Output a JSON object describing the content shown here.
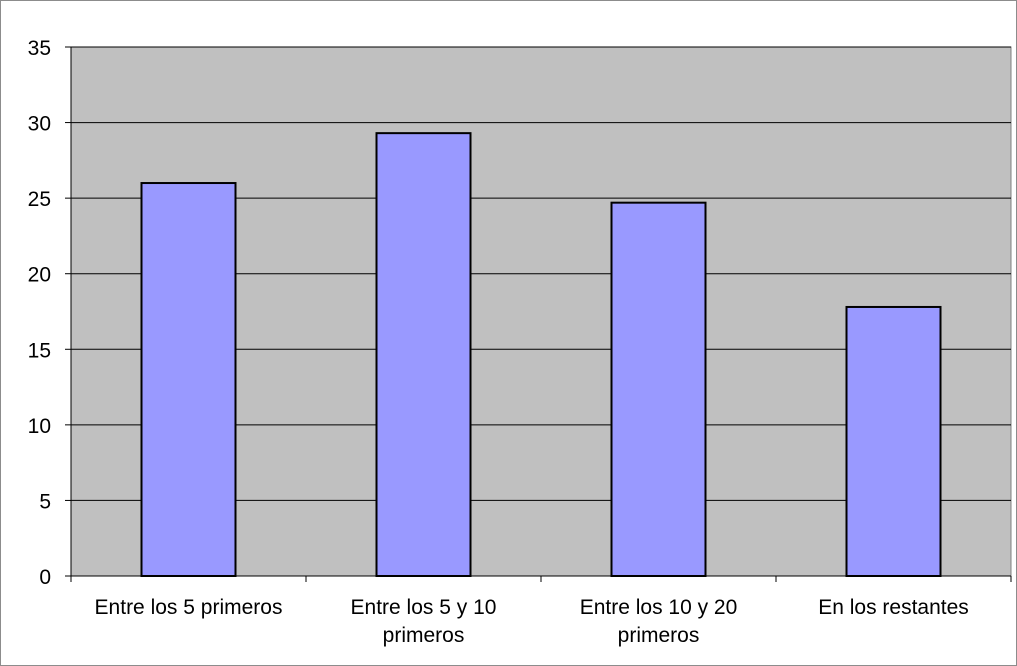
{
  "chart_data": {
    "type": "bar",
    "title": "",
    "xlabel": "",
    "ylabel": "",
    "categories": [
      [
        "Entre los 5 primeros"
      ],
      [
        "Entre los 5 y 10",
        "primeros"
      ],
      [
        "Entre los 10 y 20",
        "primeros"
      ],
      [
        "En los restantes"
      ]
    ],
    "values": [
      26,
      29.3,
      24.7,
      17.8
    ],
    "ylim": [
      0,
      35
    ],
    "yticks": [
      0,
      5,
      10,
      15,
      20,
      25,
      30,
      35
    ],
    "grid": true,
    "legend": "none",
    "colors": {
      "plot_background": "#c0c0c0",
      "bar_fill": "#9999ff",
      "bar_stroke": "#000000",
      "gridline": "#000000"
    }
  }
}
